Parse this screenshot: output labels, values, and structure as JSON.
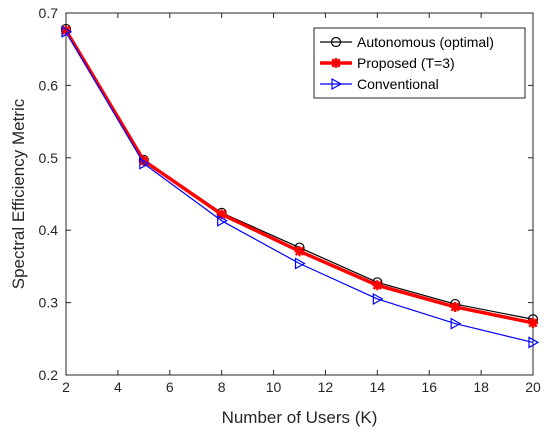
{
  "chart_data": {
    "type": "line",
    "title": "",
    "xlabel": "Number of Users (K)",
    "ylabel": "Spectral Efficiency Metric",
    "xlim": [
      2,
      20
    ],
    "ylim": [
      0.2,
      0.7
    ],
    "xticks": [
      2,
      4,
      6,
      8,
      10,
      12,
      14,
      16,
      18,
      20
    ],
    "yticks": [
      0.2,
      0.3,
      0.4,
      0.5,
      0.6,
      0.7
    ],
    "xtick_labels": [
      "2",
      "4",
      "6",
      "8",
      "10",
      "12",
      "14",
      "16",
      "18",
      "20"
    ],
    "ytick_labels": [
      "0.2",
      "0.3",
      "0.4",
      "0.5",
      "0.6",
      "0.7"
    ],
    "grid": false,
    "legend_position": "top-right",
    "x": [
      2,
      5,
      8,
      11,
      14,
      17,
      20
    ],
    "series": [
      {
        "name": "Autonomous (optimal)",
        "values": [
          0.678,
          0.497,
          0.424,
          0.376,
          0.328,
          0.298,
          0.277
        ],
        "color": "#000000",
        "marker": "circle"
      },
      {
        "name": "Proposed (T=3)",
        "values": [
          0.676,
          0.496,
          0.422,
          0.371,
          0.324,
          0.294,
          0.272
        ],
        "color": "#ff0000",
        "marker": "star"
      },
      {
        "name": "Conventional",
        "values": [
          0.674,
          0.492,
          0.413,
          0.354,
          0.305,
          0.271,
          0.245
        ],
        "color": "#0000ff",
        "marker": "triangle-right"
      }
    ]
  }
}
